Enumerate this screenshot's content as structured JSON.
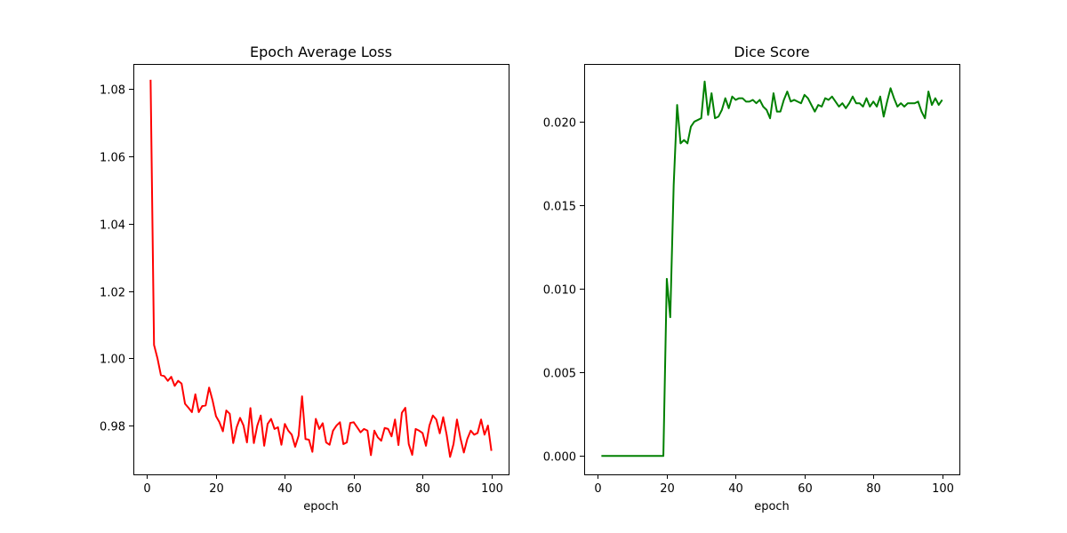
{
  "chart_data": [
    {
      "type": "line",
      "title": "Epoch Average Loss",
      "xlabel": "epoch",
      "ylabel": "",
      "xlim": [
        -4,
        105
      ],
      "ylim": [
        0.9655,
        1.0875
      ],
      "xticks": [
        0,
        20,
        40,
        60,
        80,
        100
      ],
      "xtick_labels": [
        "0",
        "20",
        "40",
        "60",
        "80",
        "100"
      ],
      "yticks": [
        0.98,
        1.0,
        1.02,
        1.04,
        1.06,
        1.08
      ],
      "ytick_labels": [
        "0.98",
        "1.00",
        "1.02",
        "1.04",
        "1.06",
        "1.08"
      ],
      "grid": false,
      "color": "#ff0000",
      "series": [
        {
          "x": [
            1,
            2,
            3,
            4,
            5,
            6,
            7,
            8,
            9,
            10,
            11,
            12,
            13,
            14,
            15,
            16,
            17,
            18,
            19,
            20,
            21,
            22,
            23,
            24,
            25,
            26,
            27,
            28,
            29,
            30,
            31,
            32,
            33,
            34,
            35,
            36,
            37,
            38,
            39,
            40,
            41,
            42,
            43,
            44,
            45,
            46,
            47,
            48,
            49,
            50,
            51,
            52,
            53,
            54,
            55,
            56,
            57,
            58,
            59,
            60,
            61,
            62,
            63,
            64,
            65,
            66,
            67,
            68,
            69,
            70,
            71,
            72,
            73,
            74,
            75,
            76,
            77,
            78,
            79,
            80,
            81,
            82,
            83,
            84,
            85,
            86,
            87,
            88,
            89,
            90,
            91,
            92,
            93,
            94,
            95,
            96,
            97,
            98,
            99,
            100
          ],
          "values": [
            1.0828,
            1.004,
            1.0,
            0.995,
            0.9947,
            0.9933,
            0.9945,
            0.9918,
            0.9933,
            0.9925,
            0.9865,
            0.9853,
            0.984,
            0.9893,
            0.984,
            0.9858,
            0.986,
            0.9913,
            0.9875,
            0.9828,
            0.981,
            0.9783,
            0.9845,
            0.9835,
            0.9748,
            0.9795,
            0.9823,
            0.98,
            0.975,
            0.9852,
            0.9748,
            0.98,
            0.983,
            0.974,
            0.9805,
            0.982,
            0.979,
            0.9795,
            0.9743,
            0.9805,
            0.9785,
            0.9773,
            0.9737,
            0.977,
            0.9887,
            0.976,
            0.9758,
            0.9722,
            0.982,
            0.979,
            0.9807,
            0.975,
            0.9743,
            0.9785,
            0.98,
            0.981,
            0.9745,
            0.975,
            0.9808,
            0.981,
            0.9795,
            0.978,
            0.979,
            0.9785,
            0.9712,
            0.9785,
            0.9765,
            0.9755,
            0.9793,
            0.979,
            0.9768,
            0.9818,
            0.9742,
            0.9838,
            0.9853,
            0.9745,
            0.9713,
            0.979,
            0.9785,
            0.9778,
            0.974,
            0.98,
            0.983,
            0.9818,
            0.9777,
            0.9825,
            0.9773,
            0.9707,
            0.9745,
            0.9818,
            0.9763,
            0.972,
            0.976,
            0.9785,
            0.9773,
            0.9778,
            0.9818,
            0.9773,
            0.98,
            0.9725
          ]
        }
      ]
    },
    {
      "type": "line",
      "title": "Dice Score",
      "xlabel": "epoch",
      "ylabel": "",
      "xlim": [
        -4,
        105
      ],
      "ylim": [
        -0.0011,
        0.02345
      ],
      "xticks": [
        0,
        20,
        40,
        60,
        80,
        100
      ],
      "xtick_labels": [
        "0",
        "20",
        "40",
        "60",
        "80",
        "100"
      ],
      "yticks": [
        0.0,
        0.005,
        0.01,
        0.015,
        0.02
      ],
      "ytick_labels": [
        "0.000",
        "0.005",
        "0.010",
        "0.015",
        "0.020"
      ],
      "grid": false,
      "color": "#008000",
      "series": [
        {
          "x": [
            1,
            2,
            3,
            4,
            5,
            6,
            7,
            8,
            9,
            10,
            11,
            12,
            13,
            14,
            15,
            16,
            17,
            18,
            19,
            20,
            21,
            22,
            23,
            24,
            25,
            26,
            27,
            28,
            29,
            30,
            31,
            32,
            33,
            34,
            35,
            36,
            37,
            38,
            39,
            40,
            41,
            42,
            43,
            44,
            45,
            46,
            47,
            48,
            49,
            50,
            51,
            52,
            53,
            54,
            55,
            56,
            57,
            58,
            59,
            60,
            61,
            62,
            63,
            64,
            65,
            66,
            67,
            68,
            69,
            70,
            71,
            72,
            73,
            74,
            75,
            76,
            77,
            78,
            79,
            80,
            81,
            82,
            83,
            84,
            85,
            86,
            87,
            88,
            89,
            90,
            91,
            92,
            93,
            94,
            95,
            96,
            97,
            98,
            99,
            100
          ],
          "values": [
            0,
            0,
            0,
            0,
            0,
            0,
            0,
            0,
            0,
            0,
            0,
            0,
            0,
            0,
            0,
            0,
            0,
            0,
            0,
            0.0106,
            0.0083,
            0.0162,
            0.021,
            0.0187,
            0.0189,
            0.0187,
            0.0197,
            0.02,
            0.0201,
            0.0202,
            0.0224,
            0.0204,
            0.0217,
            0.0202,
            0.0203,
            0.0207,
            0.0214,
            0.0208,
            0.0215,
            0.0213,
            0.0214,
            0.0214,
            0.0212,
            0.0212,
            0.0213,
            0.0211,
            0.0213,
            0.0209,
            0.0207,
            0.0202,
            0.0217,
            0.0206,
            0.0206,
            0.0213,
            0.0218,
            0.0212,
            0.0213,
            0.0212,
            0.0211,
            0.0216,
            0.0214,
            0.021,
            0.0206,
            0.021,
            0.0209,
            0.0214,
            0.0213,
            0.0215,
            0.0212,
            0.0209,
            0.0211,
            0.0208,
            0.0211,
            0.0215,
            0.0211,
            0.0211,
            0.0209,
            0.0214,
            0.0209,
            0.0212,
            0.0209,
            0.0215,
            0.0203,
            0.0212,
            0.022,
            0.0214,
            0.0209,
            0.0211,
            0.0209,
            0.0211,
            0.0211,
            0.0211,
            0.0212,
            0.0206,
            0.0202,
            0.0218,
            0.021,
            0.0214,
            0.021,
            0.0213
          ]
        }
      ]
    }
  ]
}
